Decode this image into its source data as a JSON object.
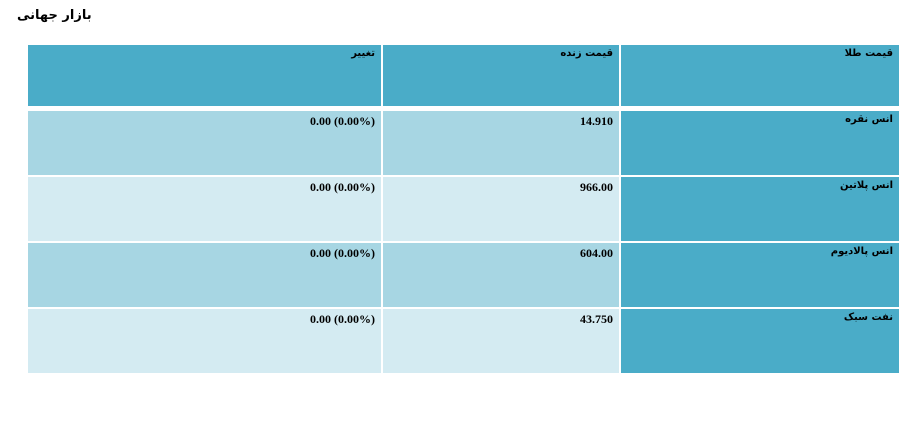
{
  "title": "بازار جهانی",
  "headers": {
    "name": "قیمت طلا",
    "price": "قیمت زنده",
    "change": "تغییر"
  },
  "rows": [
    {
      "name": "انس نقره",
      "price": "14.910",
      "change": "0.00 (0.00%)"
    },
    {
      "name": "انس پلاتین",
      "price": "966.00",
      "change": "0.00 (0.00%)"
    },
    {
      "name": "انس پالادیوم",
      "price": "604.00",
      "change": "0.00 (0.00%)"
    },
    {
      "name": "نفت سبک",
      "price": "43.750",
      "change": "0.00 (0.00%)"
    }
  ],
  "colors": {
    "header": "#4aacc8",
    "row_odd": "#a7d6e3",
    "row_even": "#d4ebf2"
  }
}
